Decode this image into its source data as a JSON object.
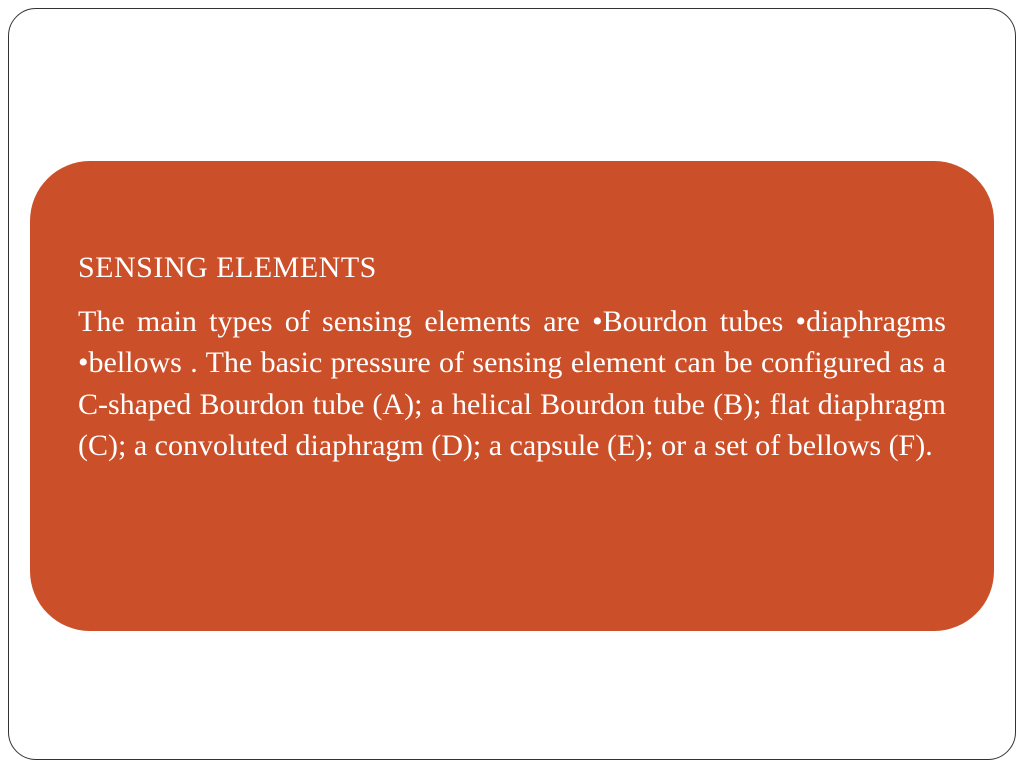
{
  "slide": {
    "background_color": "#ffffff",
    "frame_border_color": "#333333",
    "frame_border_radius": 28,
    "content_box": {
      "background_color": "#cb4f29",
      "text_color": "#ffffff",
      "border_radius": 60,
      "heading": "SENSING ELEMENTS",
      "heading_fontsize": 30,
      "body": "The main types of sensing elements are •Bourdon tubes •diaphragms •bellows . The basic pressure of sensing element can be configured as a C-shaped Bourdon tube (A); a helical Bourdon tube (B); flat diaphragm (C); a convoluted diaphragm (D); a capsule (E); or a set of bellows (F).",
      "body_fontsize": 30,
      "body_align": "justify",
      "font_family": "Times New Roman"
    }
  }
}
